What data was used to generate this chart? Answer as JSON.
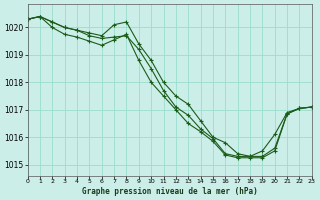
{
  "title": "Graphe pression niveau de la mer (hPa)",
  "bg_color": "#cceee8",
  "grid_color": "#99ddcc",
  "line_color": "#1a5c1a",
  "series": [
    [
      1020.3,
      1020.4,
      1020.2,
      1020.0,
      1019.9,
      1019.8,
      1019.7,
      1020.1,
      1020.2,
      1019.4,
      1018.8,
      1018.0,
      1017.5,
      1017.2,
      1016.6,
      1016.0,
      1015.8,
      1015.4,
      1015.3,
      1015.5,
      1016.1,
      1016.9,
      1017.05,
      1017.1
    ],
    [
      1020.3,
      1020.4,
      1020.2,
      1020.0,
      1019.9,
      1019.7,
      1019.6,
      1019.65,
      1019.7,
      1019.2,
      1018.5,
      1017.7,
      1017.1,
      1016.8,
      1016.3,
      1015.95,
      1015.4,
      1015.3,
      1015.3,
      1015.3,
      1015.6,
      1016.85,
      1017.05,
      1017.1
    ],
    [
      1020.3,
      1020.4,
      1020.0,
      1019.75,
      1019.65,
      1019.5,
      1019.35,
      1019.55,
      1019.75,
      1018.8,
      1018.0,
      1017.5,
      1017.0,
      1016.5,
      1016.2,
      1015.85,
      1015.35,
      1015.25,
      1015.25,
      1015.25,
      1015.5,
      1016.85,
      1017.05,
      1017.1
    ]
  ],
  "x_ticks": [
    0,
    1,
    2,
    3,
    4,
    5,
    6,
    7,
    8,
    9,
    10,
    11,
    12,
    13,
    14,
    15,
    16,
    17,
    18,
    19,
    20,
    21,
    22,
    23
  ],
  "y_ticks": [
    1015,
    1016,
    1017,
    1018,
    1019,
    1020
  ],
  "ylim": [
    1014.6,
    1020.85
  ],
  "xlim": [
    0,
    23
  ],
  "marker": "+"
}
